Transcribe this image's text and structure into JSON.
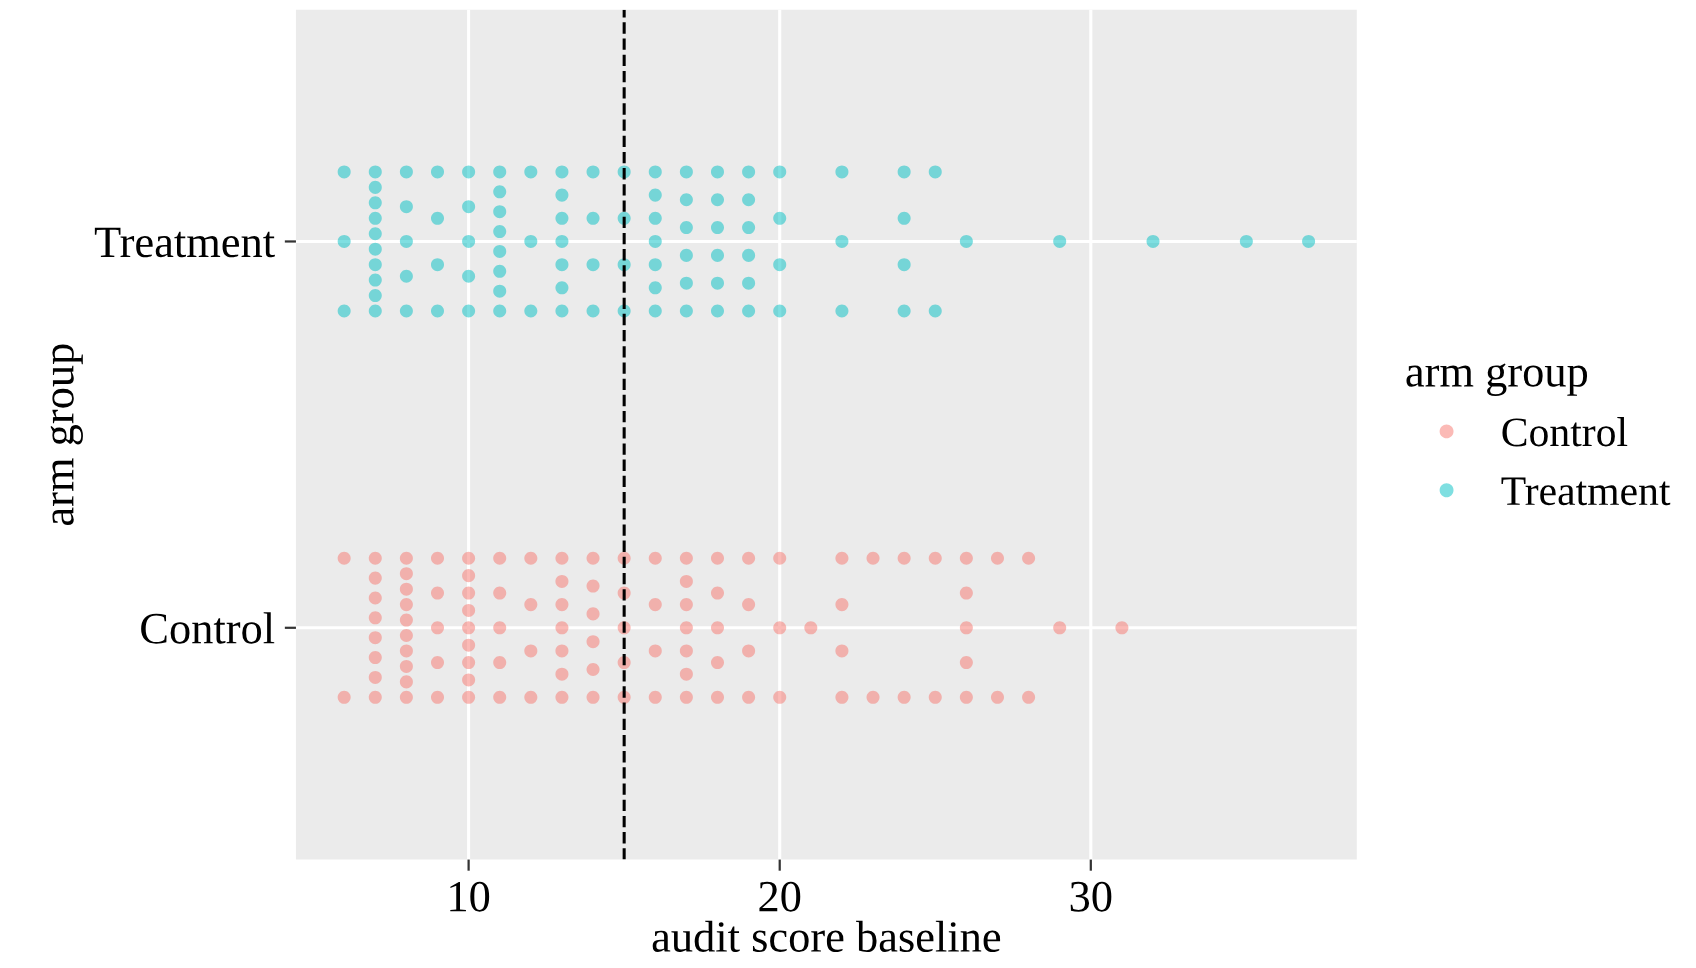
{
  "chart_data": {
    "type": "scatter",
    "orientation": "horizontal",
    "categories": [
      "Treatment",
      "Control"
    ],
    "xlabel": "audit score baseline",
    "ylabel": "arm group",
    "legend_title": "arm group",
    "legend": "right",
    "grid": true,
    "marker": "circle",
    "xlim": [
      4.45,
      38.55
    ],
    "xticks": [
      10,
      20,
      30
    ],
    "ref_lines": [
      {
        "axis": "x",
        "value": 15,
        "color": "#000000",
        "line_style": "dashed"
      }
    ],
    "series": [
      {
        "name": "Control",
        "color": "#f8766d",
        "x": [
          "Control",
          "Control",
          "Control",
          "Control",
          "Control",
          "Control",
          "Control",
          "Control",
          "Control",
          "Control",
          "Control",
          "Control",
          "Control",
          "Control",
          "Control",
          "Control",
          "Control",
          "Control",
          "Control",
          "Control",
          "Control",
          "Control",
          "Control",
          "Control",
          "Control",
          "Control",
          "Control",
          "Control",
          "Control",
          "Control",
          "Control",
          "Control",
          "Control",
          "Control",
          "Control",
          "Control",
          "Control",
          "Control",
          "Control",
          "Control",
          "Control",
          "Control",
          "Control",
          "Control",
          "Control",
          "Control",
          "Control",
          "Control",
          "Control",
          "Control",
          "Control",
          "Control",
          "Control",
          "Control",
          "Control",
          "Control",
          "Control",
          "Control",
          "Control",
          "Control",
          "Control",
          "Control",
          "Control",
          "Control",
          "Control",
          "Control",
          "Control",
          "Control",
          "Control",
          "Control",
          "Control",
          "Control",
          "Control",
          "Control",
          "Control",
          "Control",
          "Control",
          "Control",
          "Control",
          "Control",
          "Control",
          "Control",
          "Control",
          "Control",
          "Control",
          "Control",
          "Control",
          "Control",
          "Control",
          "Control",
          "Control",
          "Control",
          "Control",
          "Control",
          "Control",
          "Control",
          "Control",
          "Control",
          "Control",
          "Control",
          "Control",
          "Control",
          "Control",
          "Control",
          "Control",
          "Control"
        ],
        "values": [
          6,
          6,
          7,
          7,
          7,
          7,
          7,
          7,
          7,
          7,
          8,
          8,
          8,
          8,
          8,
          8,
          8,
          8,
          8,
          8,
          9,
          9,
          9,
          9,
          9,
          10,
          10,
          10,
          10,
          10,
          10,
          10,
          10,
          10,
          11,
          11,
          11,
          11,
          11,
          12,
          12,
          12,
          12,
          13,
          13,
          13,
          13,
          13,
          13,
          13,
          14,
          14,
          14,
          14,
          14,
          14,
          15,
          15,
          15,
          15,
          15,
          16,
          16,
          16,
          16,
          17,
          17,
          17,
          17,
          17,
          17,
          17,
          18,
          18,
          18,
          18,
          18,
          19,
          19,
          19,
          19,
          20,
          20,
          20,
          21,
          22,
          22,
          22,
          22,
          23,
          23,
          24,
          24,
          25,
          25,
          26,
          26,
          26,
          26,
          26,
          27,
          27,
          28,
          28,
          29,
          31
        ]
      },
      {
        "name": "Treatment",
        "color": "#00bfc4",
        "x": [
          "Treatment",
          "Treatment",
          "Treatment",
          "Treatment",
          "Treatment",
          "Treatment",
          "Treatment",
          "Treatment",
          "Treatment",
          "Treatment",
          "Treatment",
          "Treatment",
          "Treatment",
          "Treatment",
          "Treatment",
          "Treatment",
          "Treatment",
          "Treatment",
          "Treatment",
          "Treatment",
          "Treatment",
          "Treatment",
          "Treatment",
          "Treatment",
          "Treatment",
          "Treatment",
          "Treatment",
          "Treatment",
          "Treatment",
          "Treatment",
          "Treatment",
          "Treatment",
          "Treatment",
          "Treatment",
          "Treatment",
          "Treatment",
          "Treatment",
          "Treatment",
          "Treatment",
          "Treatment",
          "Treatment",
          "Treatment",
          "Treatment",
          "Treatment",
          "Treatment",
          "Treatment",
          "Treatment",
          "Treatment",
          "Treatment",
          "Treatment",
          "Treatment",
          "Treatment",
          "Treatment",
          "Treatment",
          "Treatment",
          "Treatment",
          "Treatment",
          "Treatment",
          "Treatment",
          "Treatment",
          "Treatment",
          "Treatment",
          "Treatment",
          "Treatment",
          "Treatment",
          "Treatment",
          "Treatment",
          "Treatment",
          "Treatment",
          "Treatment",
          "Treatment",
          "Treatment",
          "Treatment",
          "Treatment",
          "Treatment",
          "Treatment",
          "Treatment",
          "Treatment",
          "Treatment",
          "Treatment",
          "Treatment",
          "Treatment",
          "Treatment",
          "Treatment",
          "Treatment",
          "Treatment",
          "Treatment",
          "Treatment",
          "Treatment",
          "Treatment",
          "Treatment",
          "Treatment",
          "Treatment",
          "Treatment",
          "Treatment",
          "Treatment"
        ],
        "values": [
          6,
          6,
          6,
          7,
          7,
          7,
          7,
          7,
          7,
          7,
          7,
          7,
          7,
          8,
          8,
          8,
          8,
          8,
          9,
          9,
          9,
          9,
          10,
          10,
          10,
          10,
          10,
          11,
          11,
          11,
          11,
          11,
          11,
          11,
          11,
          12,
          12,
          12,
          13,
          13,
          13,
          13,
          13,
          13,
          13,
          14,
          14,
          14,
          14,
          15,
          15,
          15,
          15,
          16,
          16,
          16,
          16,
          16,
          16,
          16,
          17,
          17,
          17,
          17,
          17,
          17,
          18,
          18,
          18,
          18,
          18,
          18,
          19,
          19,
          19,
          19,
          19,
          19,
          20,
          20,
          20,
          20,
          22,
          22,
          22,
          24,
          24,
          24,
          24,
          25,
          25,
          26,
          29,
          32,
          35,
          37
        ]
      }
    ]
  }
}
